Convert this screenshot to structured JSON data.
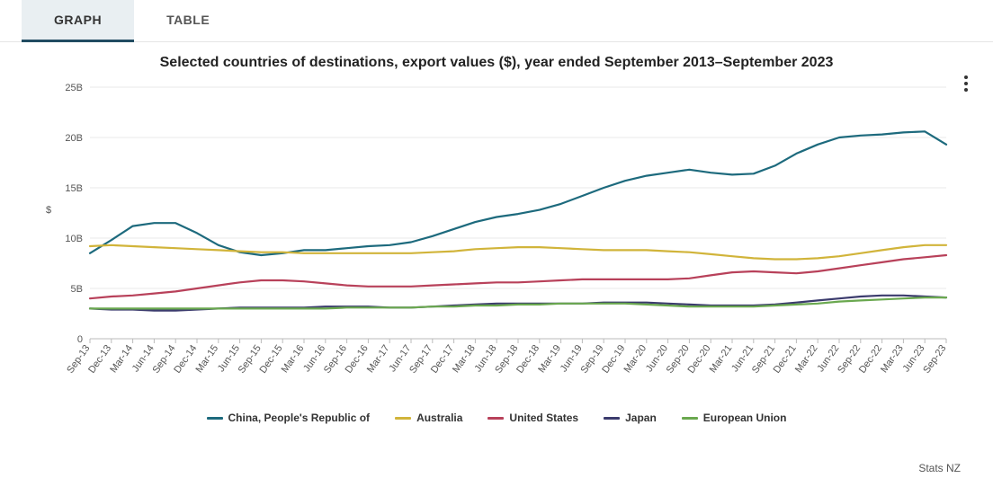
{
  "tabs": {
    "graph": "GRAPH",
    "table": "TABLE"
  },
  "chart": {
    "type": "line",
    "title": "Selected countries of destinations, export values ($), year ended September 2013–September 2023",
    "ylabel": "$",
    "ylim": [
      0,
      25
    ],
    "ytick_step": 5,
    "ytick_suffix": "B",
    "grid_color": "#e8e8e8",
    "axis_color": "#bbbbbb",
    "background_color": "#ffffff",
    "tick_fontsize": 11,
    "tick_color": "#555555",
    "line_width": 2.2,
    "categories": [
      "Sep-13",
      "Dec-13",
      "Mar-14",
      "Jun-14",
      "Sep-14",
      "Dec-14",
      "Mar-15",
      "Jun-15",
      "Sep-15",
      "Dec-15",
      "Mar-16",
      "Jun-16",
      "Sep-16",
      "Dec-16",
      "Mar-17",
      "Jun-17",
      "Sep-17",
      "Dec-17",
      "Mar-18",
      "Jun-18",
      "Sep-18",
      "Dec-18",
      "Mar-19",
      "Jun-19",
      "Sep-19",
      "Dec-19",
      "Mar-20",
      "Jun-20",
      "Sep-20",
      "Dec-20",
      "Mar-21",
      "Jun-21",
      "Sep-21",
      "Dec-21",
      "Mar-22",
      "Jun-22",
      "Sep-22",
      "Dec-22",
      "Mar-23",
      "Jun-23",
      "Sep-23"
    ],
    "series": [
      {
        "name": "China, People's Republic of",
        "color": "#1d6a7d",
        "values": [
          8.5,
          9.8,
          11.2,
          11.5,
          11.5,
          10.5,
          9.3,
          8.6,
          8.3,
          8.5,
          8.8,
          8.8,
          9.0,
          9.2,
          9.3,
          9.6,
          10.2,
          10.9,
          11.6,
          12.1,
          12.4,
          12.8,
          13.4,
          14.2,
          15.0,
          15.7,
          16.2,
          16.5,
          16.8,
          16.5,
          16.3,
          16.4,
          17.2,
          18.4,
          19.3,
          20.0,
          20.2,
          20.3,
          20.5,
          20.6,
          19.3
        ]
      },
      {
        "name": "Australia",
        "color": "#d1b43a",
        "values": [
          9.2,
          9.3,
          9.2,
          9.1,
          9.0,
          8.9,
          8.8,
          8.7,
          8.6,
          8.6,
          8.5,
          8.5,
          8.5,
          8.5,
          8.5,
          8.5,
          8.6,
          8.7,
          8.9,
          9.0,
          9.1,
          9.1,
          9.0,
          8.9,
          8.8,
          8.8,
          8.8,
          8.7,
          8.6,
          8.4,
          8.2,
          8.0,
          7.9,
          7.9,
          8.0,
          8.2,
          8.5,
          8.8,
          9.1,
          9.3,
          9.3
        ]
      },
      {
        "name": "United States",
        "color": "#b8415a",
        "values": [
          4.0,
          4.2,
          4.3,
          4.5,
          4.7,
          5.0,
          5.3,
          5.6,
          5.8,
          5.8,
          5.7,
          5.5,
          5.3,
          5.2,
          5.2,
          5.2,
          5.3,
          5.4,
          5.5,
          5.6,
          5.6,
          5.7,
          5.8,
          5.9,
          5.9,
          5.9,
          5.9,
          5.9,
          6.0,
          6.3,
          6.6,
          6.7,
          6.6,
          6.5,
          6.7,
          7.0,
          7.3,
          7.6,
          7.9,
          8.1,
          8.3
        ]
      },
      {
        "name": "Japan",
        "color": "#3b3b6d",
        "values": [
          3.0,
          2.9,
          2.9,
          2.8,
          2.8,
          2.9,
          3.0,
          3.1,
          3.1,
          3.1,
          3.1,
          3.2,
          3.2,
          3.2,
          3.1,
          3.1,
          3.2,
          3.3,
          3.4,
          3.5,
          3.5,
          3.5,
          3.5,
          3.5,
          3.6,
          3.6,
          3.6,
          3.5,
          3.4,
          3.3,
          3.3,
          3.3,
          3.4,
          3.6,
          3.8,
          4.0,
          4.2,
          4.3,
          4.3,
          4.2,
          4.1
        ]
      },
      {
        "name": "European Union",
        "color": "#6aa84f",
        "values": [
          3.0,
          3.0,
          3.0,
          3.0,
          3.0,
          3.0,
          3.0,
          3.0,
          3.0,
          3.0,
          3.0,
          3.0,
          3.1,
          3.1,
          3.1,
          3.1,
          3.2,
          3.2,
          3.3,
          3.3,
          3.4,
          3.4,
          3.5,
          3.5,
          3.5,
          3.5,
          3.4,
          3.3,
          3.2,
          3.2,
          3.2,
          3.2,
          3.3,
          3.4,
          3.5,
          3.7,
          3.8,
          3.9,
          4.0,
          4.1,
          4.1
        ]
      }
    ],
    "source": "Stats NZ"
  }
}
